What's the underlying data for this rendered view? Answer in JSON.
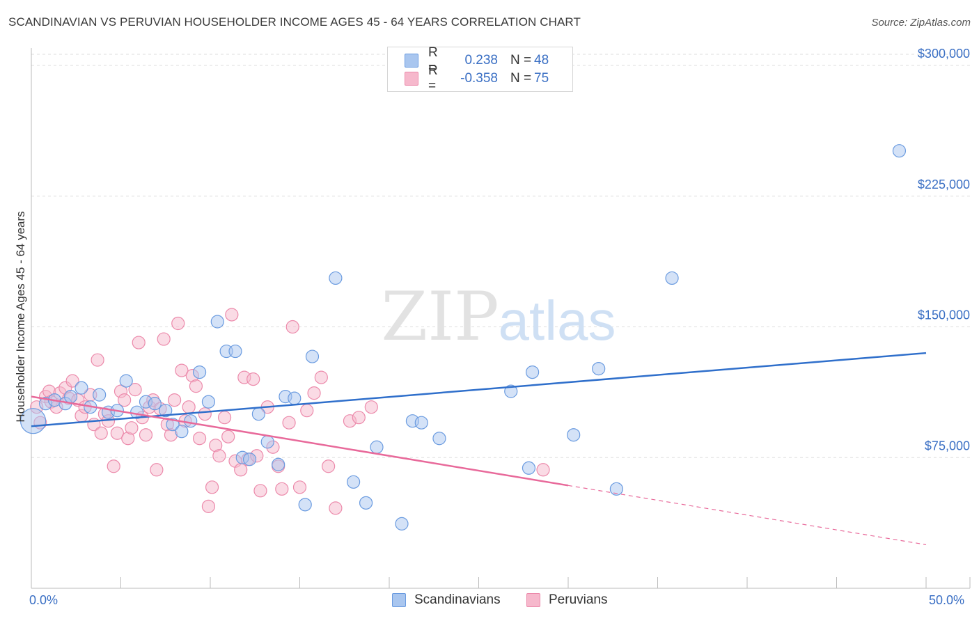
{
  "title": "SCANDINAVIAN VS PERUVIAN HOUSEHOLDER INCOME AGES 45 - 64 YEARS CORRELATION CHART",
  "source": "Source: ZipAtlas.com",
  "watermark": {
    "zip": "ZIP",
    "atlas": "atlas"
  },
  "legend_top": {
    "rows": [
      {
        "r_label": "R =",
        "r_value": "0.238",
        "n_label": "N =",
        "n_value": "48"
      },
      {
        "r_label": "R =",
        "r_value": "-0.358",
        "n_label": "N =",
        "n_value": "75"
      }
    ]
  },
  "legend_bottom": {
    "scandinavians": "Scandinavians",
    "peruvians": "Peruvians"
  },
  "x_axis": {
    "min_label": "0.0%",
    "max_label": "50.0%"
  },
  "y_axis_label": "Householder Income Ages 45 - 64 years",
  "colors": {
    "blue_fill": "#a9c6ef",
    "blue_stroke": "#6a9be0",
    "blue_line": "#2f6fcb",
    "pink_fill": "#f6b8cc",
    "pink_stroke": "#ec8aab",
    "pink_line": "#e8699a",
    "grid": "#dddddd",
    "axis_text": "#3a6fc4"
  },
  "chart_data": {
    "type": "scatter",
    "x_range": [
      0,
      50
    ],
    "y_range": [
      0,
      310000
    ],
    "y_ticks": [
      {
        "value": 75000,
        "label": "$75,000"
      },
      {
        "value": 150000,
        "label": "$150,000"
      },
      {
        "value": 225000,
        "label": "$225,000"
      },
      {
        "value": 300000,
        "label": "$300,000"
      }
    ],
    "series": [
      {
        "name": "Scandinavians",
        "color": "#6a9be0",
        "trend": {
          "x0": 0,
          "y0": 93000,
          "x1": 50,
          "y1": 135000
        },
        "points": [
          [
            0.1,
            96000,
            18
          ],
          [
            0.8,
            106000,
            9
          ],
          [
            1.3,
            108000,
            9
          ],
          [
            1.9,
            106000,
            9
          ],
          [
            2.2,
            110000,
            9
          ],
          [
            2.8,
            115000,
            9
          ],
          [
            3.3,
            104000,
            9
          ],
          [
            3.8,
            111000,
            9
          ],
          [
            4.3,
            101000,
            9
          ],
          [
            4.8,
            102000,
            9
          ],
          [
            5.3,
            119000,
            9
          ],
          [
            5.9,
            101000,
            9
          ],
          [
            6.4,
            107000,
            9
          ],
          [
            6.9,
            106000,
            9
          ],
          [
            7.5,
            102000,
            9
          ],
          [
            7.9,
            94000,
            9
          ],
          [
            8.4,
            90000,
            9
          ],
          [
            8.9,
            96000,
            9
          ],
          [
            9.4,
            124000,
            9
          ],
          [
            9.9,
            107000,
            9
          ],
          [
            10.4,
            153000,
            9
          ],
          [
            10.9,
            136000,
            9
          ],
          [
            11.4,
            136000,
            9
          ],
          [
            11.8,
            75000,
            9
          ],
          [
            12.2,
            74000,
            9
          ],
          [
            12.7,
            100000,
            9
          ],
          [
            13.2,
            84000,
            9
          ],
          [
            13.8,
            71000,
            9
          ],
          [
            14.2,
            110000,
            9
          ],
          [
            14.7,
            109000,
            9
          ],
          [
            15.3,
            48000,
            9
          ],
          [
            15.7,
            133000,
            9
          ],
          [
            17.0,
            178000,
            9
          ],
          [
            18.0,
            61000,
            9
          ],
          [
            18.7,
            49000,
            9
          ],
          [
            19.3,
            81000,
            9
          ],
          [
            20.7,
            37000,
            9
          ],
          [
            21.3,
            96000,
            9
          ],
          [
            21.8,
            95000,
            9
          ],
          [
            22.8,
            86000,
            9
          ],
          [
            26.8,
            113000,
            9
          ],
          [
            27.8,
            69000,
            9
          ],
          [
            28.0,
            124000,
            9
          ],
          [
            30.3,
            88000,
            9
          ],
          [
            31.7,
            126000,
            9
          ],
          [
            32.7,
            57000,
            9
          ],
          [
            35.8,
            178000,
            9
          ],
          [
            48.5,
            251000,
            9
          ]
        ]
      },
      {
        "name": "Peruvians",
        "color": "#ec8aab",
        "trend": {
          "x0": 0,
          "y0": 110000,
          "x1": 30,
          "y1": 59000,
          "x_dash_end": 50,
          "y_dash_end": 25000
        },
        "points": [
          [
            0.3,
            104000,
            9
          ],
          [
            0.5,
            95000,
            9
          ],
          [
            0.8,
            110000,
            9
          ],
          [
            1.0,
            113000,
            9
          ],
          [
            1.1,
            107000,
            9
          ],
          [
            1.4,
            104000,
            9
          ],
          [
            1.6,
            112000,
            9
          ],
          [
            1.9,
            115000,
            9
          ],
          [
            2.1,
            109000,
            9
          ],
          [
            2.3,
            119000,
            9
          ],
          [
            2.6,
            108000,
            9
          ],
          [
            2.8,
            99000,
            9
          ],
          [
            3.0,
            104000,
            9
          ],
          [
            3.3,
            111000,
            9
          ],
          [
            3.5,
            94000,
            9
          ],
          [
            3.7,
            131000,
            9
          ],
          [
            3.9,
            89000,
            9
          ],
          [
            4.1,
            100000,
            9
          ],
          [
            4.3,
            96000,
            9
          ],
          [
            4.6,
            70000,
            9
          ],
          [
            4.8,
            89000,
            9
          ],
          [
            5.0,
            113000,
            9
          ],
          [
            5.2,
            108000,
            9
          ],
          [
            5.4,
            86000,
            9
          ],
          [
            5.6,
            92000,
            9
          ],
          [
            5.8,
            114000,
            9
          ],
          [
            6.0,
            141000,
            9
          ],
          [
            6.2,
            98000,
            9
          ],
          [
            6.4,
            88000,
            9
          ],
          [
            6.6,
            104000,
            9
          ],
          [
            6.8,
            108000,
            9
          ],
          [
            7.0,
            68000,
            9
          ],
          [
            7.2,
            103000,
            9
          ],
          [
            7.4,
            143000,
            9
          ],
          [
            7.6,
            94000,
            9
          ],
          [
            7.8,
            88000,
            9
          ],
          [
            8.0,
            108000,
            9
          ],
          [
            8.2,
            152000,
            9
          ],
          [
            8.4,
            125000,
            9
          ],
          [
            8.6,
            96000,
            9
          ],
          [
            8.8,
            104000,
            9
          ],
          [
            9.0,
            122000,
            9
          ],
          [
            9.2,
            116000,
            9
          ],
          [
            9.4,
            86000,
            9
          ],
          [
            9.7,
            100000,
            9
          ],
          [
            9.9,
            47000,
            9
          ],
          [
            10.1,
            58000,
            9
          ],
          [
            10.3,
            82000,
            9
          ],
          [
            10.5,
            76000,
            9
          ],
          [
            10.8,
            98000,
            9
          ],
          [
            11.0,
            87000,
            9
          ],
          [
            11.2,
            157000,
            9
          ],
          [
            11.4,
            73000,
            9
          ],
          [
            11.7,
            68000,
            9
          ],
          [
            11.9,
            121000,
            9
          ],
          [
            12.1,
            74000,
            9
          ],
          [
            12.4,
            120000,
            9
          ],
          [
            12.6,
            76000,
            9
          ],
          [
            12.8,
            56000,
            9
          ],
          [
            13.2,
            104000,
            9
          ],
          [
            13.5,
            81000,
            9
          ],
          [
            13.8,
            70000,
            9
          ],
          [
            14.0,
            57000,
            9
          ],
          [
            14.4,
            95000,
            9
          ],
          [
            14.6,
            150000,
            9
          ],
          [
            15.0,
            58000,
            9
          ],
          [
            15.4,
            102000,
            9
          ],
          [
            15.8,
            112000,
            9
          ],
          [
            16.2,
            121000,
            9
          ],
          [
            16.6,
            70000,
            9
          ],
          [
            17.0,
            46000,
            9
          ],
          [
            17.8,
            96000,
            9
          ],
          [
            18.3,
            98000,
            9
          ],
          [
            19.0,
            104000,
            9
          ],
          [
            28.6,
            68000,
            9
          ]
        ]
      }
    ]
  }
}
